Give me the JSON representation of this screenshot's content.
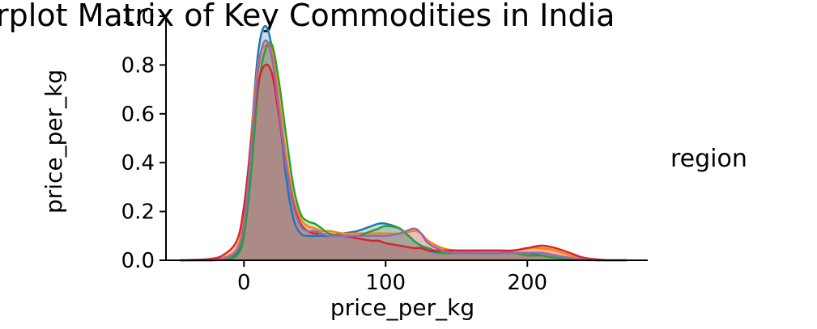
{
  "chart_data": {
    "type": "area",
    "title": "Pairplot Matrix of Key Commodities in India",
    "xlabel": "price_per_kg",
    "ylabel": "price_per_kg",
    "xlim": [
      -55,
      285
    ],
    "ylim": [
      0,
      1.0
    ],
    "xticks": [
      0,
      100,
      200
    ],
    "yticks": [
      0.0,
      0.2,
      0.4,
      0.6,
      0.8,
      1.0
    ],
    "xtick_labels": [
      "0",
      "100",
      "200"
    ],
    "ytick_labels": [
      "0.0",
      "0.2",
      "0.4",
      "0.6",
      "0.8",
      "1.0"
    ],
    "legend_title": "region",
    "legend_placement": "right",
    "grid": false,
    "x": [
      -45,
      -35,
      -25,
      -15,
      -5,
      0,
      5,
      10,
      15,
      20,
      25,
      30,
      35,
      40,
      45,
      50,
      55,
      60,
      70,
      80,
      90,
      95,
      100,
      110,
      120,
      125,
      130,
      140,
      150,
      160,
      170,
      180,
      190,
      200,
      210,
      220,
      230,
      240,
      250,
      260,
      270
    ],
    "series": [
      {
        "color": "#1f77b4",
        "values": [
          0,
          0,
          0,
          0.002,
          0.03,
          0.15,
          0.5,
          0.85,
          0.96,
          0.86,
          0.6,
          0.33,
          0.17,
          0.11,
          0.1,
          0.1,
          0.1,
          0.1,
          0.11,
          0.12,
          0.14,
          0.15,
          0.15,
          0.13,
          0.08,
          0.06,
          0.04,
          0.03,
          0.03,
          0.03,
          0.03,
          0.03,
          0.03,
          0.03,
          0.02,
          0.01,
          0.005,
          0.001,
          0,
          0,
          0
        ]
      },
      {
        "color": "#ff7f0e",
        "values": [
          0,
          0,
          0.002,
          0.01,
          0.05,
          0.18,
          0.5,
          0.8,
          0.88,
          0.85,
          0.65,
          0.42,
          0.25,
          0.17,
          0.14,
          0.13,
          0.12,
          0.12,
          0.11,
          0.11,
          0.11,
          0.11,
          0.11,
          0.11,
          0.12,
          0.11,
          0.08,
          0.05,
          0.04,
          0.04,
          0.04,
          0.04,
          0.04,
          0.05,
          0.05,
          0.04,
          0.02,
          0.01,
          0.003,
          0,
          0
        ]
      },
      {
        "color": "#2ca02c",
        "values": [
          0,
          0,
          0,
          0.002,
          0.02,
          0.1,
          0.35,
          0.7,
          0.86,
          0.88,
          0.72,
          0.5,
          0.3,
          0.19,
          0.16,
          0.15,
          0.13,
          0.11,
          0.1,
          0.1,
          0.12,
          0.13,
          0.14,
          0.13,
          0.08,
          0.06,
          0.05,
          0.03,
          0.03,
          0.03,
          0.03,
          0.03,
          0.03,
          0.02,
          0.02,
          0.01,
          0.005,
          0.002,
          0.001,
          0,
          0
        ]
      },
      {
        "color": "#d62728",
        "values": [
          0,
          0.002,
          0.005,
          0.02,
          0.08,
          0.22,
          0.48,
          0.72,
          0.8,
          0.76,
          0.58,
          0.38,
          0.23,
          0.15,
          0.12,
          0.11,
          0.11,
          0.1,
          0.1,
          0.09,
          0.08,
          0.08,
          0.07,
          0.06,
          0.05,
          0.05,
          0.04,
          0.04,
          0.04,
          0.04,
          0.04,
          0.04,
          0.04,
          0.05,
          0.06,
          0.05,
          0.03,
          0.01,
          0.003,
          0,
          0
        ]
      },
      {
        "color": "#9467bd",
        "values": [
          0,
          0,
          0.001,
          0.005,
          0.04,
          0.15,
          0.45,
          0.78,
          0.9,
          0.82,
          0.6,
          0.38,
          0.22,
          0.14,
          0.12,
          0.12,
          0.11,
          0.1,
          0.1,
          0.1,
          0.1,
          0.1,
          0.1,
          0.11,
          0.13,
          0.11,
          0.07,
          0.04,
          0.03,
          0.03,
          0.03,
          0.03,
          0.03,
          0.03,
          0.03,
          0.02,
          0.01,
          0.003,
          0,
          0,
          0
        ]
      }
    ]
  }
}
